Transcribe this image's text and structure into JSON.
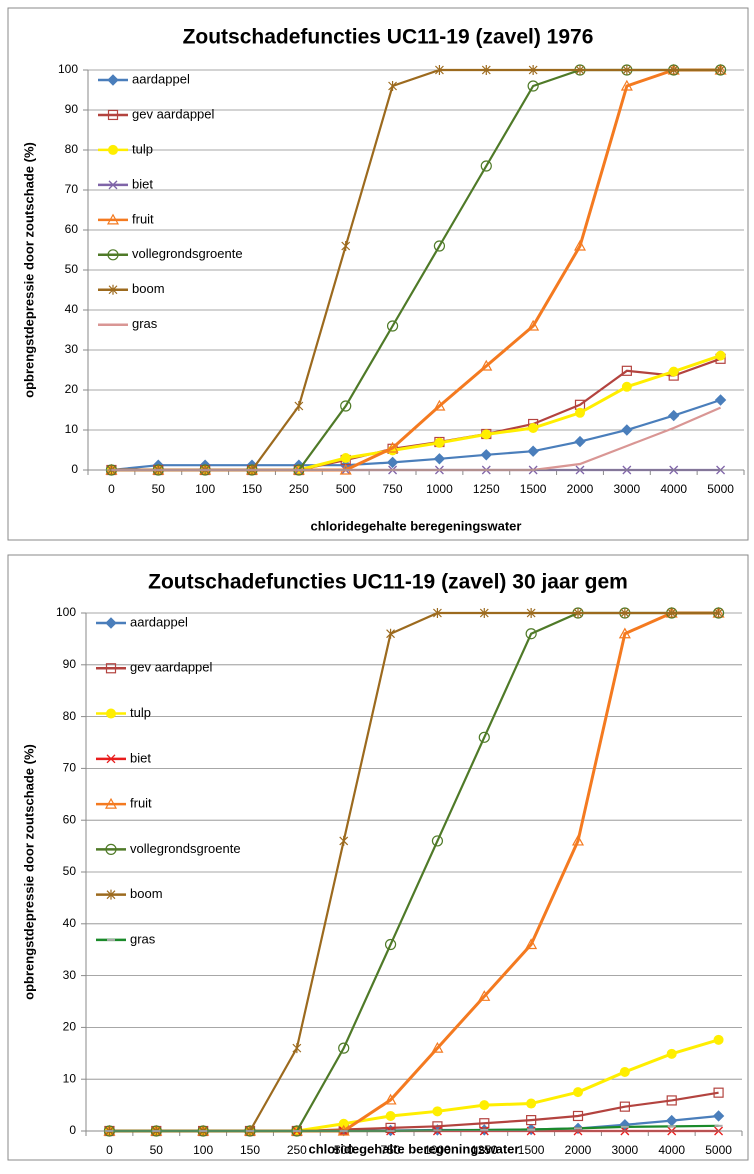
{
  "chart_data": [
    {
      "type": "line",
      "title": "Zoutschadefuncties UC11-19 (zavel) 1976",
      "x_label": "chloridegehalte beregeningswater",
      "y_label": "opbrengstdepressie door zoutschade (%)",
      "categories": [
        "0",
        "50",
        "100",
        "150",
        "250",
        "500",
        "750",
        "1000",
        "1250",
        "1500",
        "2000",
        "3000",
        "4000",
        "5000"
      ],
      "ylim": [
        0,
        100
      ],
      "yticks": [
        0,
        10,
        20,
        30,
        40,
        50,
        60,
        70,
        80,
        90,
        100
      ],
      "grid": true,
      "legend": "top-left",
      "series": [
        {
          "name": "aardappel",
          "color": "#4a7ebb",
          "marker": "diamond",
          "values": [
            0,
            1.2,
            1.2,
            1.2,
            1.2,
            1.2,
            1.9,
            2.8,
            3.8,
            4.7,
            7.1,
            10,
            13.6,
            17.5
          ]
        },
        {
          "name": "gev aardappel",
          "color": "#b3433f",
          "marker": "square",
          "values": [
            0,
            0,
            0,
            0,
            0,
            2.5,
            5.3,
            7,
            9,
            11.5,
            16.3,
            24.8,
            23.6,
            27.8
          ]
        },
        {
          "name": "tulp",
          "color": "#ffee00",
          "marker": "circle-filled",
          "values": [
            0,
            0,
            0,
            0,
            0,
            3,
            4.9,
            6.8,
            8.9,
            10.5,
            14.3,
            20.8,
            24.6,
            28.6
          ]
        },
        {
          "name": "biet",
          "color": "#7f64a8",
          "marker": "x",
          "values": [
            0,
            0,
            0,
            0,
            0,
            0,
            0,
            0,
            0,
            0,
            0,
            0,
            0,
            0
          ]
        },
        {
          "name": "fruit",
          "color": "#f47a20",
          "marker": "triangle",
          "values": [
            0,
            0,
            0,
            0,
            0,
            0,
            5.5,
            16,
            26,
            36,
            56,
            96,
            100,
            100
          ]
        },
        {
          "name": "vollegrondsgroente",
          "color": "#4f7a28",
          "marker": "circle",
          "values": [
            0,
            0,
            0,
            0,
            0,
            16,
            36,
            56,
            76,
            96,
            100,
            100,
            100,
            100
          ]
        },
        {
          "name": "boom",
          "color": "#9c6a1e",
          "marker": "star",
          "values": [
            0,
            0,
            0,
            0,
            16,
            56,
            96,
            100,
            100,
            100,
            100,
            100,
            100,
            100
          ]
        },
        {
          "name": "gras",
          "color": "#d99694",
          "marker": "none",
          "values": [
            0,
            0,
            0,
            0,
            0,
            0,
            0,
            0,
            0,
            0,
            1.5,
            6,
            10.5,
            15.6
          ]
        }
      ]
    },
    {
      "type": "line",
      "title": "Zoutschadefuncties UC11-19 (zavel) 30 jaar gem",
      "x_label": "chloridegehalte beregeningswater",
      "y_label": "opbrengstdepressie door zoutschade (%)",
      "categories": [
        "0",
        "50",
        "100",
        "150",
        "250",
        "500",
        "750",
        "1000",
        "1250",
        "1500",
        "2000",
        "3000",
        "4000",
        "5000"
      ],
      "ylim": [
        0,
        100
      ],
      "yticks": [
        0,
        10,
        20,
        30,
        40,
        50,
        60,
        70,
        80,
        90,
        100
      ],
      "grid": true,
      "legend": "top-left",
      "series": [
        {
          "name": "aardappel",
          "color": "#4a7ebb",
          "marker": "diamond",
          "values": [
            0,
            0,
            0,
            0,
            0,
            0.1,
            0.1,
            0.2,
            0.2,
            0.3,
            0.5,
            1.2,
            2,
            2.9
          ]
        },
        {
          "name": "gev aardappel",
          "color": "#b3433f",
          "marker": "square",
          "values": [
            0,
            0,
            0,
            0,
            0,
            0.3,
            0.6,
            0.9,
            1.5,
            2.1,
            2.9,
            4.7,
            5.9,
            7.4
          ]
        },
        {
          "name": "tulp",
          "color": "#ffee00",
          "marker": "circle-filled",
          "values": [
            0,
            0,
            0,
            0,
            0,
            1.4,
            2.9,
            3.8,
            5,
            5.3,
            7.5,
            11.4,
            14.9,
            17.6
          ]
        },
        {
          "name": "biet",
          "color": "#e81c1c",
          "marker": "x",
          "values": [
            0,
            0,
            0,
            0,
            0,
            0,
            0,
            0,
            0,
            0,
            0,
            0,
            0,
            0
          ]
        },
        {
          "name": "fruit",
          "color": "#f47a20",
          "marker": "triangle",
          "values": [
            0,
            0,
            0,
            0,
            0,
            0,
            6,
            16,
            26,
            36,
            56,
            96,
            100,
            100
          ]
        },
        {
          "name": "vollegrondsgroente",
          "color": "#4f7a28",
          "marker": "circle",
          "values": [
            0,
            0,
            0,
            0,
            0,
            16,
            36,
            56,
            76,
            96,
            100,
            100,
            100,
            100
          ]
        },
        {
          "name": "boom",
          "color": "#9c6a1e",
          "marker": "star",
          "values": [
            0,
            0,
            0,
            0,
            16,
            56,
            96,
            100,
            100,
            100,
            100,
            100,
            100,
            100
          ]
        },
        {
          "name": "gras",
          "color": "#1a8a2a",
          "marker": "dash",
          "values": [
            0,
            0,
            0,
            0,
            0,
            0,
            0,
            0.1,
            0.2,
            0.3,
            0.5,
            0.8,
            0.9,
            1
          ]
        }
      ]
    }
  ]
}
